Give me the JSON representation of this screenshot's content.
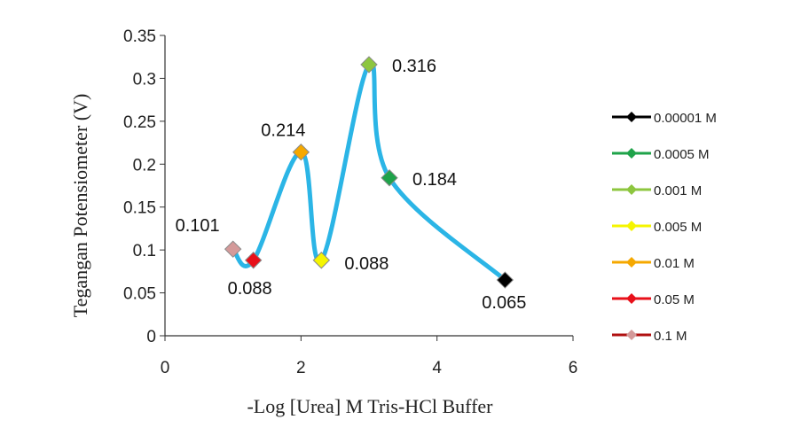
{
  "chart_data": {
    "type": "scatter",
    "xlabel": "-Log [Urea] M Tris-HCl Buffer",
    "ylabel": "Tegangan Potensiometer (V)",
    "xlim": [
      0,
      6
    ],
    "ylim": [
      0,
      0.35
    ],
    "xticks": [
      "0",
      "2",
      "4",
      "6"
    ],
    "yticks": [
      "0",
      "0.05",
      "0.1",
      "0.15",
      "0.2",
      "0.25",
      "0.3",
      "0.35"
    ],
    "line_color": "#2bb5e6",
    "legend_position": "right",
    "series": [
      {
        "name": "0.00001 M",
        "x": 5.0,
        "y": 0.065,
        "label": "0.065",
        "color": "#000000"
      },
      {
        "name": "0.0005 M",
        "x": 3.3,
        "y": 0.184,
        "label": "0.184",
        "color": "#1fa34a"
      },
      {
        "name": "0.001 M",
        "x": 3.0,
        "y": 0.316,
        "label": "0.316",
        "color": "#8dc63f"
      },
      {
        "name": "0.005 M",
        "x": 2.3,
        "y": 0.088,
        "label": "0.088",
        "color": "#f5f500"
      },
      {
        "name": "0.01 M",
        "x": 2.0,
        "y": 0.214,
        "label": "0.214",
        "color": "#f5a800"
      },
      {
        "name": "0.05 M",
        "x": 1.3,
        "y": 0.088,
        "label": "0.088",
        "color": "#e8101a"
      },
      {
        "name": "0.1 M",
        "x": 1.0,
        "y": 0.101,
        "label": "0.101",
        "color": "#d49a9a",
        "legend_line_color": "#b01010"
      }
    ]
  }
}
